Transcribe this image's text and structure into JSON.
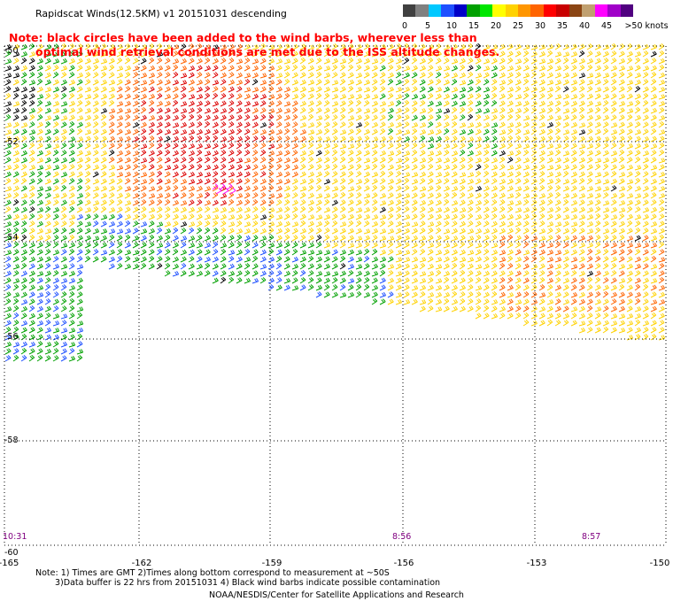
{
  "title": "Rapidscat Winds(12.5KM) v1 20151031 descending",
  "note": {
    "line1": "Note: black circles have been added to the wind barbs, wherever less than",
    "line2": "optimal wind retrieval conditions are met due to the ISS altitude changes."
  },
  "legend": {
    "unit_label": ">50 knots",
    "labels": [
      "0",
      "5",
      "10",
      "15",
      "20",
      "25",
      "30",
      "35",
      "40",
      "45"
    ],
    "colors": [
      "#404040",
      "#808080",
      "#00c8ff",
      "#1e50ff",
      "#0000c8",
      "#00a000",
      "#00e600",
      "#ffff00",
      "#ffd200",
      "#ff9600",
      "#ff6400",
      "#ff0000",
      "#c80000",
      "#8b4513",
      "#c0a070",
      "#ff00ff",
      "#a000c8",
      "#500080"
    ]
  },
  "axes": {
    "lat_labels": [
      "-50",
      "-52",
      "-54",
      "-56",
      "-58",
      "-60"
    ],
    "lon_labels": [
      "-165",
      "-162",
      "-159",
      "-156",
      "-153",
      "-150"
    ]
  },
  "time_labels": [
    "10:31",
    "8:56",
    "8:57"
  ],
  "footnote": {
    "line1": "Note: 1) Times are GMT 2)Times along bottom correspond to measurement at ~50S",
    "line2": "3)Data buffer is 22 hrs from 20151031 4) Black wind barbs indicate possible contamination"
  },
  "credit": "NOAA/NESDIS/Center for Satellite Applications and Research",
  "colors": {
    "calm": "#1e50ff",
    "light": "#00a000",
    "moderate": "#ffd200",
    "fresh": "#ff6400",
    "strong": "#dc0000",
    "gale": "#8b4513",
    "storm": "#ff00ff",
    "flagged": "#000000",
    "note_text": "#ff0000",
    "time_labels": "#800080"
  }
}
